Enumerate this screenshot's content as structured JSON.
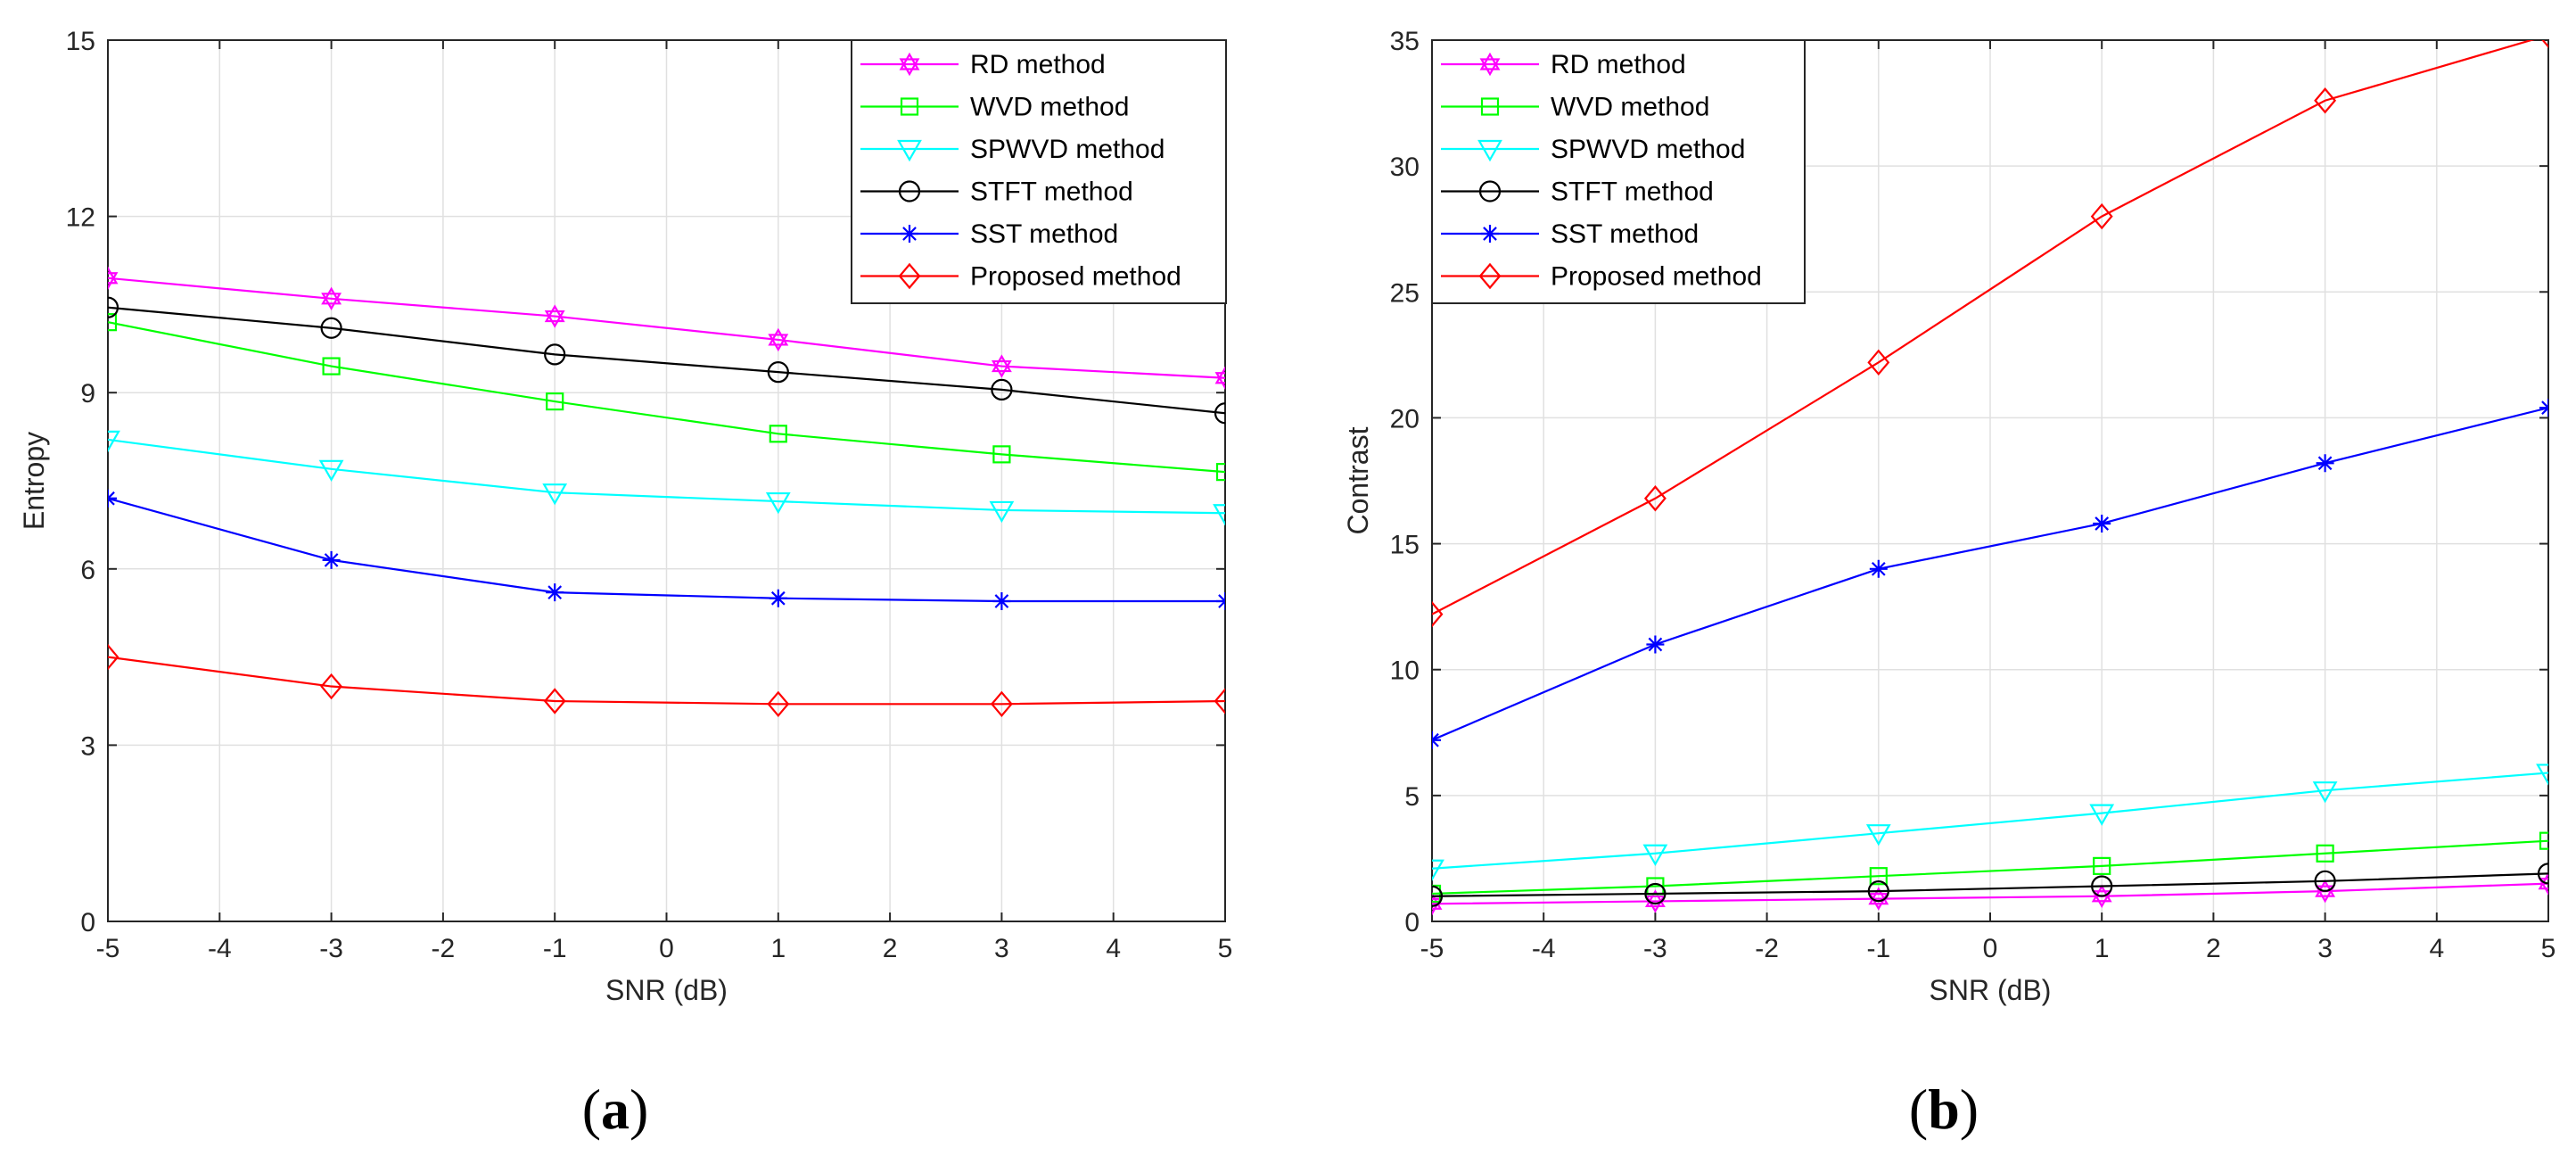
{
  "colors": {
    "RD": "#ff00ff",
    "WVD": "#00ff00",
    "SPWVD": "#00ffff",
    "STFT": "#000000",
    "SST": "#0000ff",
    "Proposed": "#ff0000",
    "grid": "#e0e0e0",
    "axis": "#262626"
  },
  "panels": [
    {
      "open": "(",
      "letter": "a",
      "close": ")"
    },
    {
      "open": "(",
      "letter": "b",
      "close": ")"
    }
  ],
  "chart_data": [
    {
      "type": "line",
      "title": "",
      "xlabel": "SNR (dB)",
      "ylabel": "Entropy",
      "xlim": [
        -5,
        5
      ],
      "ylim": [
        0,
        15
      ],
      "xticks": [
        -5,
        -4,
        -3,
        -2,
        -1,
        0,
        1,
        2,
        3,
        4,
        5
      ],
      "yticks": [
        0,
        3,
        6,
        9,
        12,
        15
      ],
      "grid": true,
      "legend_position": "top-right",
      "x": [
        -5,
        -3,
        -1,
        1,
        3,
        5
      ],
      "series": [
        {
          "key": "RD",
          "name": "RD method",
          "marker": "hexagram",
          "values": [
            10.95,
            10.6,
            10.3,
            9.9,
            9.45,
            9.25
          ]
        },
        {
          "key": "WVD",
          "name": "WVD method",
          "marker": "square",
          "values": [
            10.2,
            9.45,
            8.85,
            8.3,
            7.95,
            7.65
          ]
        },
        {
          "key": "SPWVD",
          "name": "SPWVD method",
          "marker": "triangle-down",
          "values": [
            8.2,
            7.7,
            7.3,
            7.15,
            7.0,
            6.95
          ]
        },
        {
          "key": "STFT",
          "name": "STFT method",
          "marker": "circle",
          "values": [
            10.45,
            10.1,
            9.65,
            9.35,
            9.05,
            8.65
          ]
        },
        {
          "key": "SST",
          "name": "SST method",
          "marker": "asterisk",
          "values": [
            7.2,
            6.15,
            5.6,
            5.5,
            5.45,
            5.45
          ]
        },
        {
          "key": "Proposed",
          "name": "Proposed method",
          "marker": "diamond",
          "values": [
            4.5,
            4.0,
            3.75,
            3.7,
            3.7,
            3.75
          ]
        }
      ]
    },
    {
      "type": "line",
      "title": "",
      "xlabel": "SNR (dB)",
      "ylabel": "Contrast",
      "xlim": [
        -5,
        5
      ],
      "ylim": [
        0,
        35
      ],
      "xticks": [
        -5,
        -4,
        -3,
        -2,
        -1,
        0,
        1,
        2,
        3,
        4,
        5
      ],
      "yticks": [
        0,
        5,
        10,
        15,
        20,
        25,
        30,
        35
      ],
      "grid": true,
      "legend_position": "top-left",
      "x": [
        -5,
        -3,
        -1,
        1,
        3,
        5
      ],
      "series": [
        {
          "key": "RD",
          "name": "RD method",
          "marker": "hexagram",
          "values": [
            0.7,
            0.8,
            0.9,
            1.0,
            1.2,
            1.5
          ]
        },
        {
          "key": "WVD",
          "name": "WVD method",
          "marker": "square",
          "values": [
            1.1,
            1.4,
            1.8,
            2.2,
            2.7,
            3.2
          ]
        },
        {
          "key": "SPWVD",
          "name": "SPWVD method",
          "marker": "triangle-down",
          "values": [
            2.1,
            2.7,
            3.5,
            4.3,
            5.2,
            5.9
          ]
        },
        {
          "key": "STFT",
          "name": "STFT method",
          "marker": "circle",
          "values": [
            1.0,
            1.1,
            1.2,
            1.4,
            1.6,
            1.9
          ]
        },
        {
          "key": "SST",
          "name": "SST method",
          "marker": "asterisk",
          "values": [
            7.2,
            11.0,
            14.0,
            15.8,
            18.2,
            20.4
          ]
        },
        {
          "key": "Proposed",
          "name": "Proposed method",
          "marker": "diamond",
          "values": [
            12.2,
            16.8,
            22.2,
            28.0,
            32.6,
            35.2
          ]
        }
      ]
    }
  ]
}
